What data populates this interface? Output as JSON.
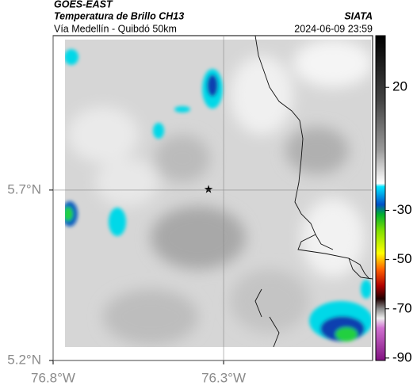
{
  "header": {
    "source": "GOES-EAST",
    "product": "Temperatura de Brillo CH13",
    "brand": "SIATA",
    "route": "Vía Medellín - Quibdó 50km",
    "timestamp": "2024-06-09 23:59"
  },
  "map": {
    "xlim": [
      -76.8,
      -75.863
    ],
    "ylim": [
      5.2,
      6.153
    ],
    "xticks": [
      {
        "value": -76.8,
        "label": "76.8°W"
      },
      {
        "value": -76.3,
        "label": "76.3°W"
      }
    ],
    "yticks": [
      {
        "value": 5.2,
        "label": "5.2°N"
      },
      {
        "value": 5.7,
        "label": "5.7°N"
      }
    ]
  },
  "colorbar": {
    "lim": [
      41,
      -91
    ],
    "ticks": [
      20,
      -30,
      -50,
      -70,
      -90
    ]
  }
}
